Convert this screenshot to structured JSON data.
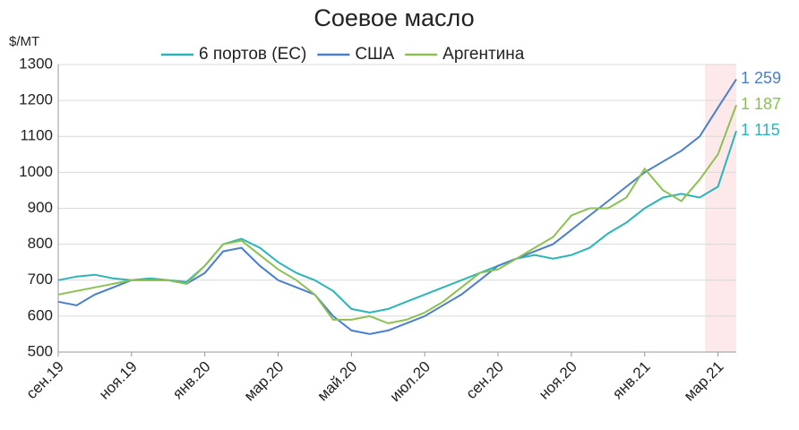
{
  "chart_data": {
    "type": "line",
    "title": "Соевое масло",
    "y_axis_label": "$/MT",
    "categories": [
      "сен.19",
      null,
      null,
      null,
      "ноя.19",
      null,
      null,
      null,
      "янв.20",
      null,
      null,
      null,
      "мар.20",
      null,
      null,
      null,
      "май.20",
      null,
      null,
      null,
      "июл.20",
      null,
      null,
      null,
      "сен.20",
      null,
      null,
      null,
      "ноя.20",
      null,
      null,
      null,
      "янв.21",
      null,
      null,
      null,
      "мар.21",
      null
    ],
    "series": [
      {
        "name": "6 портов (ЕС)",
        "color": "#2bb5b8",
        "values": [
          700,
          710,
          715,
          705,
          700,
          705,
          700,
          695,
          740,
          800,
          815,
          790,
          750,
          720,
          700,
          670,
          620,
          610,
          620,
          640,
          660,
          680,
          700,
          720,
          740,
          760,
          770,
          760,
          770,
          790,
          830,
          860,
          900,
          930,
          940,
          930,
          960,
          1115
        ],
        "value_labels": [
          null,
          null,
          null,
          null,
          null,
          null,
          null,
          null,
          null,
          null,
          null,
          null,
          null,
          null,
          null,
          null,
          null,
          null,
          null,
          null,
          null,
          null,
          null,
          null,
          null,
          null,
          null,
          null,
          null,
          null,
          null,
          null,
          null,
          null,
          null,
          null,
          null,
          "1 115"
        ]
      },
      {
        "name": "США",
        "color": "#4a7fcc",
        "values": [
          640,
          630,
          660,
          680,
          700,
          700,
          700,
          690,
          720,
          780,
          790,
          740,
          700,
          680,
          660,
          600,
          560,
          550,
          560,
          580,
          600,
          630,
          660,
          700,
          740,
          760,
          780,
          800,
          840,
          880,
          920,
          960,
          1000,
          1030,
          1060,
          1100,
          1180,
          1259
        ],
        "value_labels": [
          null,
          null,
          null,
          null,
          null,
          null,
          null,
          null,
          null,
          null,
          null,
          null,
          null,
          null,
          null,
          null,
          null,
          null,
          null,
          null,
          null,
          null,
          null,
          null,
          null,
          null,
          null,
          null,
          null,
          null,
          null,
          null,
          null,
          null,
          null,
          null,
          null,
          "1 259"
        ]
      },
      {
        "name": "Аргентина",
        "color": "#8cc152",
        "values": [
          660,
          670,
          680,
          690,
          700,
          700,
          700,
          690,
          740,
          800,
          810,
          770,
          730,
          700,
          660,
          590,
          590,
          600,
          580,
          590,
          610,
          640,
          680,
          720,
          730,
          760,
          790,
          820,
          880,
          900,
          900,
          930,
          1010,
          950,
          920,
          980,
          1050,
          1187
        ],
        "value_labels": [
          null,
          null,
          null,
          null,
          null,
          null,
          null,
          null,
          null,
          null,
          null,
          null,
          null,
          null,
          null,
          null,
          null,
          null,
          null,
          null,
          null,
          null,
          null,
          null,
          null,
          null,
          null,
          null,
          null,
          null,
          null,
          null,
          null,
          null,
          null,
          null,
          null,
          "1 187"
        ]
      }
    ],
    "ylim": [
      500,
      1300
    ],
    "yticks": [
      500,
      600,
      700,
      800,
      900,
      1000,
      1100,
      1200,
      1300
    ],
    "grid": true
  }
}
